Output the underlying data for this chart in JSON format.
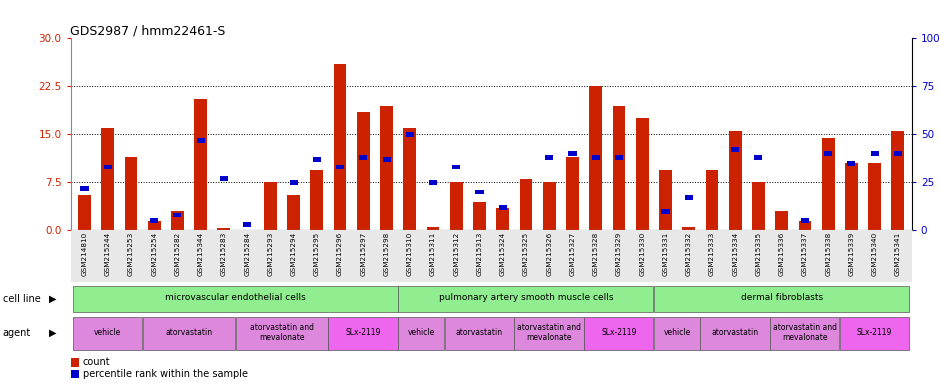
{
  "title": "GDS2987 / hmm22461-S",
  "sample_labels": [
    "GSM214810",
    "GSM215244",
    "GSM215253",
    "GSM215254",
    "GSM215282",
    "GSM215344",
    "GSM215283",
    "GSM215284",
    "GSM215293",
    "GSM215294",
    "GSM215295",
    "GSM215296",
    "GSM215297",
    "GSM215298",
    "GSM215310",
    "GSM215311",
    "GSM215312",
    "GSM215313",
    "GSM215324",
    "GSM215325",
    "GSM215326",
    "GSM215327",
    "GSM215328",
    "GSM215329",
    "GSM215330",
    "GSM215331",
    "GSM215332",
    "GSM215333",
    "GSM215334",
    "GSM215335",
    "GSM215336",
    "GSM215337",
    "GSM215338",
    "GSM215339",
    "GSM215340",
    "GSM215341"
  ],
  "count": [
    5.5,
    16.0,
    11.5,
    1.5,
    3.0,
    20.5,
    0.3,
    0.0,
    7.5,
    5.5,
    9.5,
    26.0,
    18.5,
    19.5,
    16.0,
    0.5,
    7.5,
    4.5,
    3.5,
    8.0,
    7.5,
    11.5,
    22.5,
    19.5,
    17.5,
    9.5,
    0.5,
    9.5,
    15.5,
    7.5,
    3.0,
    1.5,
    14.5,
    10.5,
    10.5,
    15.5
  ],
  "percentile": [
    22,
    33,
    0,
    5,
    8,
    47,
    27,
    3,
    0,
    25,
    37,
    33,
    38,
    37,
    50,
    25,
    33,
    20,
    12,
    0,
    38,
    40,
    38,
    38,
    0,
    10,
    17,
    0,
    42,
    38,
    0,
    5,
    40,
    35,
    40,
    40
  ],
  "cell_line_groups": [
    {
      "label": "microvascular endothelial cells",
      "start": 0,
      "end": 14
    },
    {
      "label": "pulmonary artery smooth muscle cells",
      "start": 14,
      "end": 25
    },
    {
      "label": "dermal fibroblasts",
      "start": 25,
      "end": 36
    }
  ],
  "agent_groups": [
    {
      "label": "vehicle",
      "start": 0,
      "end": 3,
      "slx": false
    },
    {
      "label": "atorvastatin",
      "start": 3,
      "end": 7,
      "slx": false
    },
    {
      "label": "atorvastatin and\nmevalonate",
      "start": 7,
      "end": 11,
      "slx": false
    },
    {
      "label": "SLx-2119",
      "start": 11,
      "end": 14,
      "slx": true
    },
    {
      "label": "vehicle",
      "start": 14,
      "end": 16,
      "slx": false
    },
    {
      "label": "atorvastatin",
      "start": 16,
      "end": 19,
      "slx": false
    },
    {
      "label": "atorvastatin and\nmevalonate",
      "start": 19,
      "end": 22,
      "slx": false
    },
    {
      "label": "SLx-2119",
      "start": 22,
      "end": 25,
      "slx": true
    },
    {
      "label": "vehicle",
      "start": 25,
      "end": 27,
      "slx": false
    },
    {
      "label": "atorvastatin",
      "start": 27,
      "end": 30,
      "slx": false
    },
    {
      "label": "atorvastatin and\nmevalonate",
      "start": 30,
      "end": 33,
      "slx": false
    },
    {
      "label": "SLx-2119",
      "start": 33,
      "end": 36,
      "slx": true
    }
  ],
  "ylim_left": [
    0,
    30
  ],
  "ylim_right": [
    0,
    100
  ],
  "yticks_left": [
    0,
    7.5,
    15,
    22.5,
    30
  ],
  "yticks_right": [
    0,
    25,
    50,
    75,
    100
  ],
  "bar_color": "#cc2200",
  "percentile_color": "#0000cc",
  "cell_line_color": "#90ee90",
  "agent_color_normal": "#dd88dd",
  "agent_color_slx": "#ee66ee"
}
